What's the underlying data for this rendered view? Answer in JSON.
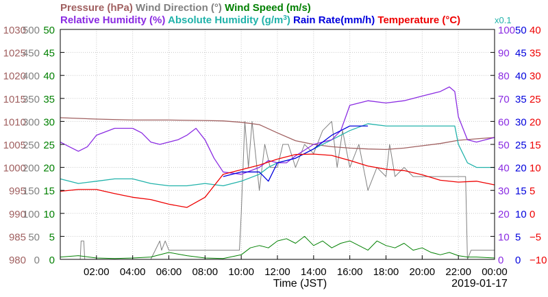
{
  "chart_data": {
    "type": "line",
    "date_label": "2019-01-17",
    "xlabel": "Time (JST)",
    "x_ticks": [
      "02:00",
      "04:00",
      "06:00",
      "08:00",
      "10:00",
      "12:00",
      "14:00",
      "16:00",
      "18:00",
      "20:00",
      "22:00",
      "00:00"
    ],
    "x_range_hours": [
      0,
      24
    ],
    "legend_row1": [
      {
        "text": "Pressure (hPa)",
        "color": "#a06060"
      },
      {
        "text": "Wind Direction (°)",
        "color": "#808080"
      },
      {
        "text": "Wind Speed (m/s)",
        "color": "#008000"
      }
    ],
    "legend_row2": [
      {
        "text": "Relative Humidity (%)",
        "color": "#8a2be2"
      },
      {
        "text": "Absolute Humidity (g/m",
        "sup": "3",
        "tail": ")",
        "color": "#20b2aa"
      },
      {
        "text": "Rain Rate(mm/h)",
        "color": "#0000dd"
      },
      {
        "text": "Temperature (°C)",
        "color": "#ee0000"
      }
    ],
    "scale_note": "x0.1",
    "axes": {
      "pressure": {
        "range": [
          980,
          1030
        ],
        "ticks": [
          "1030",
          "1025",
          "1020",
          "1015",
          "1010",
          "1005",
          "1000",
          "995",
          "990",
          "985",
          "980"
        ],
        "color": "#a06060"
      },
      "wind_direction": {
        "range": [
          0,
          500
        ],
        "ticks": [
          "500",
          "450",
          "400",
          "350",
          "300",
          "250",
          "200",
          "150",
          "100",
          "50",
          "0"
        ],
        "color": "#808080"
      },
      "wind_speed": {
        "range": [
          0,
          50
        ],
        "ticks": [
          "50",
          "45",
          "40",
          "35",
          "30",
          "25",
          "20",
          "15",
          "10",
          "5",
          "0"
        ],
        "color": "#008000"
      },
      "humidity": {
        "range": [
          0,
          100
        ],
        "ticks": [
          "100",
          "90",
          "80",
          "70",
          "60",
          "50",
          "40",
          "30",
          "20",
          "10",
          "0"
        ],
        "color": "#8a2be2"
      },
      "rain_rate": {
        "range": [
          0,
          50
        ],
        "ticks": [
          "50",
          "45",
          "40",
          "35",
          "30",
          "25",
          "20",
          "15",
          "10",
          "5",
          "0"
        ],
        "color": "#0000dd"
      },
      "temperature": {
        "range": [
          -10,
          40
        ],
        "ticks": [
          "40",
          "35",
          "30",
          "25",
          "20",
          "15",
          "10",
          "5",
          "0",
          "−5",
          "−10"
        ],
        "color": "#ee0000"
      }
    },
    "series": [
      {
        "name": "Pressure (hPa)",
        "axis": "pressure",
        "color": "#a06060",
        "x": [
          0,
          2,
          4,
          6,
          8,
          9,
          10,
          11,
          12,
          13,
          14,
          15,
          16,
          17,
          18,
          19,
          20,
          21,
          22,
          23,
          24
        ],
        "y": [
          1010.8,
          1010.5,
          1010.3,
          1010.3,
          1010.2,
          1010.1,
          1009.8,
          1009.3,
          1007.5,
          1005.8,
          1005.0,
          1004.5,
          1004.2,
          1004.0,
          1003.9,
          1004.2,
          1004.7,
          1005.2,
          1005.9,
          1006.2,
          1006.5
        ]
      },
      {
        "name": "Relative Humidity (%)",
        "axis": "humidity",
        "color": "#8a2be2",
        "x": [
          0,
          0.5,
          1,
          1.5,
          2,
          3,
          4,
          4.5,
          5,
          5.5,
          6,
          6.5,
          7,
          7.5,
          8,
          8.5,
          9,
          10,
          11,
          11.5,
          12,
          12.5,
          13,
          14,
          15,
          15.5,
          16,
          17,
          18,
          19,
          20,
          21,
          21.5,
          21.8,
          22,
          22.5,
          23,
          24
        ],
        "y": [
          51,
          49,
          47,
          49,
          54,
          57,
          57,
          55,
          51,
          50,
          51,
          52,
          54,
          57,
          52,
          44,
          38,
          37,
          40,
          43,
          42,
          42,
          45,
          50,
          52,
          56,
          67,
          69,
          68,
          69,
          71,
          73,
          75,
          73,
          62,
          52,
          51,
          53
        ]
      },
      {
        "name": "Absolute Humidity (g/m3)",
        "axis": "humidity",
        "color": "#20b2aa",
        "x": [
          0,
          1,
          2,
          3,
          4,
          5,
          6,
          7,
          8,
          9,
          10,
          11,
          11.5,
          12,
          13,
          14,
          15,
          16,
          17,
          18,
          19,
          20,
          21,
          21.8,
          22,
          22.5,
          23,
          24
        ],
        "y": [
          35,
          33,
          34,
          35,
          35,
          33,
          32,
          32,
          33,
          32,
          34,
          37,
          40,
          42,
          44,
          48,
          52,
          56,
          59,
          58,
          58,
          58,
          58,
          58,
          50,
          42,
          40,
          40
        ]
      },
      {
        "name": "Temperature (°C)",
        "axis": "temperature",
        "color": "#ee0000",
        "x": [
          0,
          1,
          2,
          3,
          4,
          5,
          6,
          7,
          8,
          8.5,
          9,
          10,
          11,
          12,
          13,
          14,
          15,
          16,
          17,
          18,
          19,
          20,
          21,
          22,
          23,
          24
        ],
        "y": [
          4.8,
          5.2,
          5.2,
          4.3,
          3.5,
          3,
          2,
          1.3,
          3.5,
          6,
          8.5,
          9.5,
          10.5,
          11.8,
          12.8,
          12.9,
          12.6,
          11.5,
          10.3,
          9.6,
          9.3,
          8.4,
          7.2,
          6.8,
          7,
          6.2
        ]
      },
      {
        "name": "Rain Rate(mm/h)",
        "axis": "rain_rate",
        "color": "#0000dd",
        "x": [
          9,
          10,
          11,
          11.5,
          12,
          13,
          14,
          15,
          16,
          17
        ],
        "y": [
          18,
          19,
          19,
          17,
          21,
          22,
          24,
          27,
          29,
          29
        ]
      },
      {
        "name": "Wind Direction (°)",
        "axis": "wind_direction",
        "color": "#808080",
        "x": [
          0,
          1.1,
          1.15,
          1.3,
          1.35,
          2,
          3,
          4,
          5,
          5.5,
          5.6,
          5.8,
          6,
          6.2,
          6.4,
          7,
          8,
          9,
          9.9,
          10,
          10.2,
          10.4,
          10.6,
          11,
          11.3,
          11.6,
          12,
          12.3,
          12.6,
          13,
          13.5,
          14,
          14.5,
          15,
          15.3,
          15.6,
          16,
          16.5,
          17,
          17.5,
          18,
          18.2,
          18.5,
          19,
          19.5,
          20,
          20.5,
          21,
          21.5,
          22,
          22.4,
          22.5,
          22.7,
          23,
          23.5,
          24
        ],
        "y": [
          0,
          0,
          40,
          40,
          0,
          0,
          0,
          0,
          0,
          40,
          20,
          40,
          20,
          20,
          20,
          20,
          20,
          20,
          20,
          100,
          300,
          200,
          300,
          150,
          250,
          200,
          200,
          250,
          250,
          200,
          250,
          230,
          280,
          300,
          200,
          280,
          200,
          250,
          150,
          200,
          180,
          250,
          180,
          200,
          180,
          180,
          180,
          180,
          180,
          180,
          180,
          0,
          20,
          20,
          20,
          20
        ]
      },
      {
        "name": "Wind Speed (m/s)",
        "axis": "wind_speed",
        "color": "#008000",
        "x": [
          0,
          1,
          2,
          3,
          4,
          5,
          6,
          7,
          8,
          9,
          10,
          10.5,
          11,
          11.5,
          12,
          12.5,
          13,
          13.5,
          14,
          14.5,
          15,
          15.5,
          16,
          16.5,
          17,
          17.5,
          18,
          18.5,
          19,
          19.5,
          20,
          20.5,
          21,
          21.5,
          22,
          22.5,
          23,
          24
        ],
        "y": [
          0.5,
          0.8,
          0.3,
          0.2,
          0.3,
          0.5,
          1.5,
          0.8,
          0.3,
          0.2,
          1,
          2.5,
          3,
          2.5,
          4,
          4.5,
          3.5,
          5,
          3,
          4,
          2.5,
          3.5,
          4,
          3,
          2,
          4,
          3,
          2.5,
          3.5,
          2,
          2.5,
          1.5,
          1,
          1.5,
          0.8,
          0.5,
          0.5,
          0.3
        ]
      }
    ]
  }
}
